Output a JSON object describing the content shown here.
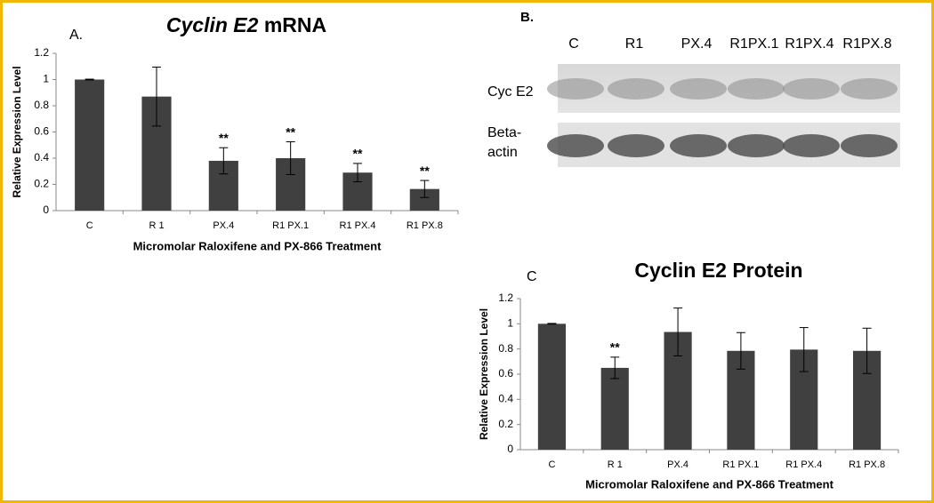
{
  "chart_data": [
    {
      "type": "bar",
      "panel_label": "A.",
      "title_italic": "Cyclin E2",
      "title": "mRNA",
      "x_label": "Micromolar Raloxifene and PX-866 Treatment",
      "y_label": "Relative Expression Level",
      "categories": [
        "C",
        "R 1",
        "PX.4",
        "R1 PX.1",
        "R1 PX.4",
        "R1 PX.8"
      ],
      "values": [
        1.0,
        0.87,
        0.38,
        0.4,
        0.29,
        0.165
      ],
      "errors": [
        0.003,
        0.225,
        0.1,
        0.125,
        0.07,
        0.065
      ],
      "annotations": [
        null,
        null,
        "**",
        "**",
        "**",
        "**"
      ],
      "color": "#404040",
      "ylim": [
        0,
        1.2
      ],
      "yticks": [
        0,
        0.2,
        0.4,
        0.6,
        0.8,
        1,
        1.2
      ]
    },
    {
      "type": "bar",
      "panel_label": "C",
      "title": "Cyclin E2 Protein",
      "x_label": "Micromolar Raloxifene and PX-866 Treatment",
      "y_label": "Relative Expression Level",
      "categories": [
        "C",
        "R 1",
        "PX.4",
        "R1 PX.1",
        "R1 PX.4",
        "R1 PX.8"
      ],
      "values": [
        1.0,
        0.65,
        0.935,
        0.785,
        0.795,
        0.785
      ],
      "errors": [
        0.003,
        0.085,
        0.19,
        0.145,
        0.175,
        0.18
      ],
      "annotations": [
        null,
        "**",
        null,
        null,
        null,
        null
      ],
      "color": "#404040",
      "ylim": [
        0,
        1.2
      ],
      "yticks": [
        0,
        0.2,
        0.4,
        0.6,
        0.8,
        1,
        1.2
      ]
    }
  ],
  "blot": {
    "panel_label": "B.",
    "lanes": [
      "C",
      "R1",
      "PX.4",
      "R1PX.1",
      "R1PX.4",
      "R1PX.8"
    ],
    "rows": [
      [
        "Cyc E2"
      ],
      [
        "Beta-",
        "actin"
      ]
    ]
  }
}
